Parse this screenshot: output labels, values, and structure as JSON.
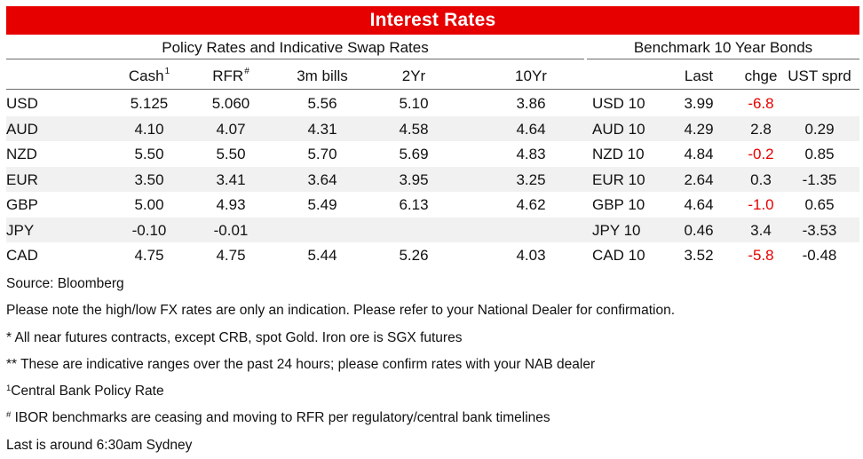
{
  "title": "Interest Rates",
  "groups": {
    "policy": "Policy Rates and Indicative Swap Rates",
    "bonds": "Benchmark 10 Year Bonds"
  },
  "columns": {
    "cash": "Cash",
    "cash_mark": "1",
    "rfr": "RFR",
    "rfr_mark": "#",
    "bills": "3m bills",
    "two_yr": "2Yr",
    "ten_yr": "10Yr",
    "last": "Last",
    "chge": "chge",
    "ust_sprd": "UST sprd"
  },
  "rows": [
    {
      "ccy": "USD",
      "cash": "5.125",
      "rfr": "5.060",
      "bills": "5.56",
      "two_yr": "5.10",
      "ten_yr": "3.86",
      "bond": "USD 10",
      "last": "3.99",
      "chge": "-6.8",
      "ust_sprd": ""
    },
    {
      "ccy": "AUD",
      "cash": "4.10",
      "rfr": "4.07",
      "bills": "4.31",
      "two_yr": "4.58",
      "ten_yr": "4.64",
      "bond": "AUD 10",
      "last": "4.29",
      "chge": "2.8",
      "ust_sprd": "0.29"
    },
    {
      "ccy": "NZD",
      "cash": "5.50",
      "rfr": "5.50",
      "bills": "5.70",
      "two_yr": "5.69",
      "ten_yr": "4.83",
      "bond": "NZD 10",
      "last": "4.84",
      "chge": "-0.2",
      "ust_sprd": "0.85"
    },
    {
      "ccy": "EUR",
      "cash": "3.50",
      "rfr": "3.41",
      "bills": "3.64",
      "two_yr": "3.95",
      "ten_yr": "3.25",
      "bond": "EUR 10",
      "last": "2.64",
      "chge": "0.3",
      "ust_sprd": "-1.35"
    },
    {
      "ccy": "GBP",
      "cash": "5.00",
      "rfr": "4.93",
      "bills": "5.49",
      "two_yr": "6.13",
      "ten_yr": "4.62",
      "bond": "GBP 10",
      "last": "4.64",
      "chge": "-1.0",
      "ust_sprd": "0.65"
    },
    {
      "ccy": "JPY",
      "cash": "-0.10",
      "rfr": "-0.01",
      "bills": "",
      "two_yr": "",
      "ten_yr": "",
      "bond": "JPY 10",
      "last": "0.46",
      "chge": "3.4",
      "ust_sprd": "-3.53"
    },
    {
      "ccy": "CAD",
      "cash": "4.75",
      "rfr": "4.75",
      "bills": "5.44",
      "two_yr": "5.26",
      "ten_yr": "4.03",
      "bond": "CAD 10",
      "last": "3.52",
      "chge": "-5.8",
      "ust_sprd": "-0.48"
    }
  ],
  "notes": {
    "source": "Source: Bloomberg",
    "fx_note": "Please note the high/low FX rates are only an indication. Please refer to your National Dealer for confirmation.",
    "futures_note": "* All near futures contracts, except CRB, spot Gold.  Iron ore is SGX futures",
    "ranges_note": "** These are indicative ranges over the past 24 hours; please confirm rates with your NAB dealer",
    "policy_mark": "1",
    "policy_text": "Central Bank Policy Rate",
    "ibor_mark": "#",
    "ibor_text": " IBOR benchmarks are ceasing and moving to RFR per regulatory/central bank timelines",
    "last_note": "Last is around 6:30am Sydney"
  },
  "colors": {
    "banner": "#e60000",
    "negative": "#e60000",
    "row_shade": "#f1f1f1"
  }
}
